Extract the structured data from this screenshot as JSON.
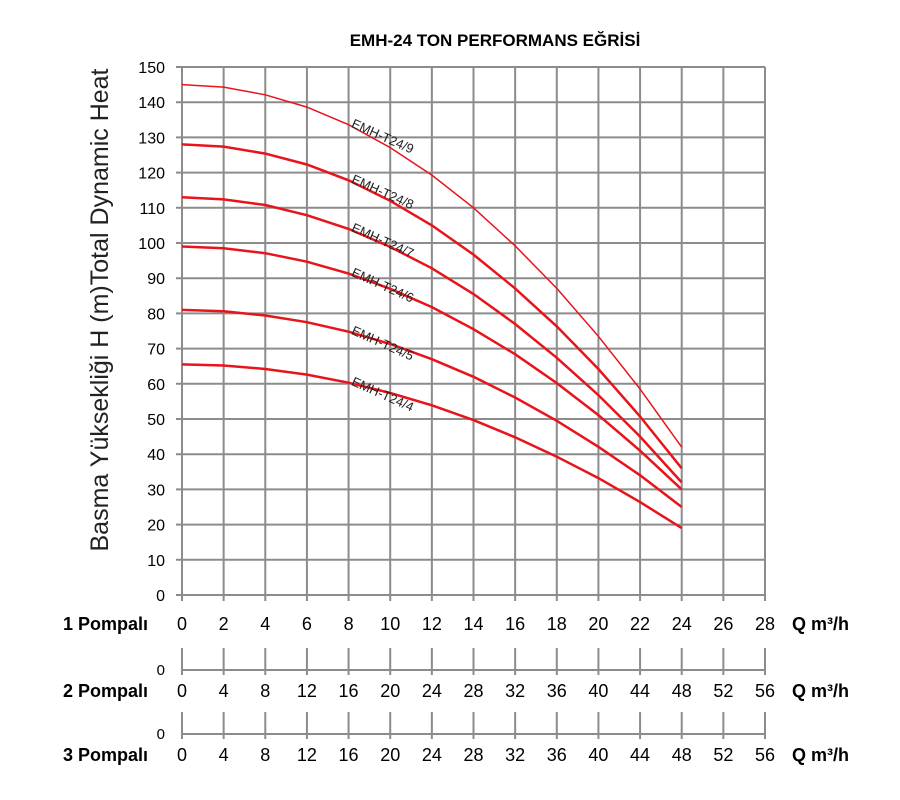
{
  "chart_data": {
    "type": "line",
    "title": "EMH-24 TON PERFORMANS EĞRİSİ",
    "ylabel": "Basma Yüksekliği H (m)Total Dynamic Heat",
    "ylim": [
      0,
      150
    ],
    "yticks": [
      "0",
      "10",
      "20",
      "30",
      "40",
      "50",
      "60",
      "70",
      "80",
      "90",
      "100",
      "110",
      "120",
      "130",
      "140",
      "150"
    ],
    "xlim": [
      0,
      28
    ],
    "grid": true,
    "x": [
      0,
      2,
      4,
      6,
      8,
      10,
      12,
      14,
      16,
      18,
      20,
      22,
      24
    ],
    "series": [
      {
        "name": "EMH-T24/9",
        "values": [
          145,
          144.3,
          142.1,
          138.6,
          133.6,
          127.1,
          119.3,
          110.0,
          99.2,
          87.1,
          73.5,
          58.5,
          42
        ]
      },
      {
        "name": "EMH-T24/8",
        "values": [
          128,
          127.4,
          125.4,
          122.3,
          117.8,
          112.0,
          105,
          96.7,
          87.1,
          76.3,
          64.2,
          50.7,
          36
        ]
      },
      {
        "name": "EMH-T24/7",
        "values": [
          113,
          112.4,
          110.8,
          107.9,
          104,
          98.9,
          92.8,
          85.5,
          77,
          67.4,
          56.8,
          45,
          32
        ]
      },
      {
        "name": "EMH-T24/6",
        "values": [
          99,
          98.5,
          97.1,
          94.7,
          91.3,
          87,
          81.8,
          75.5,
          68.4,
          60.2,
          51.1,
          41,
          30
        ]
      },
      {
        "name": "EMH-T24/5",
        "values": [
          81,
          80.6,
          79.4,
          77.5,
          74.8,
          71.3,
          67,
          62,
          56.1,
          49.5,
          42.1,
          34,
          25
        ]
      },
      {
        "name": "EMH-T24/4",
        "values": [
          65.5,
          65.2,
          64.2,
          62.6,
          60.3,
          57.4,
          53.9,
          49.7,
          44.8,
          39.3,
          33.2,
          26.4,
          19
        ]
      }
    ],
    "x_axes": [
      {
        "label": "1 Pompalı",
        "ticks": [
          "0",
          "2",
          "4",
          "6",
          "8",
          "10",
          "12",
          "14",
          "16",
          "18",
          "20",
          "22",
          "24",
          "26",
          "28"
        ],
        "unit": "Q m³/h"
      },
      {
        "label": "2 Pompalı",
        "ticks": [
          "0",
          "4",
          "8",
          "12",
          "16",
          "20",
          "24",
          "28",
          "32",
          "36",
          "40",
          "44",
          "48",
          "52",
          "56"
        ],
        "unit": "Q m³/h",
        "zero": "0"
      },
      {
        "label": "3 Pompalı",
        "ticks": [
          "0",
          "4",
          "8",
          "12",
          "16",
          "20",
          "24",
          "28",
          "32",
          "36",
          "40",
          "44",
          "48",
          "52",
          "56"
        ],
        "unit": "Q m³/h",
        "zero": "0"
      }
    ],
    "line_color": "#e8141b"
  }
}
